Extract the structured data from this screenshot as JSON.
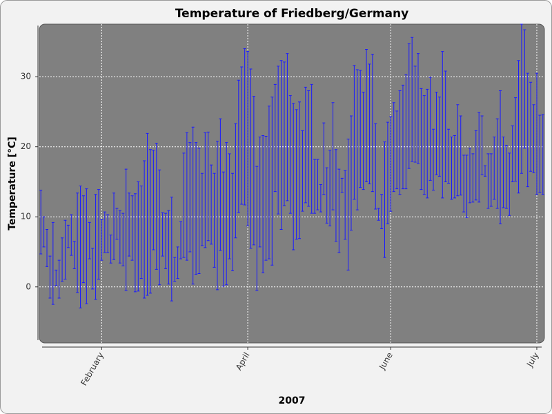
{
  "chart_data": {
    "type": "range",
    "title": "Temperature of Friedberg/Germany",
    "x_label": "2007",
    "y_label": "Temperature [°C]",
    "color": "#1a1aff",
    "ylim": [
      -8,
      37.5
    ],
    "yticks": [
      0,
      10,
      20,
      30
    ],
    "grid": true,
    "categories": [
      null,
      null,
      null,
      null,
      null,
      null,
      null,
      null,
      null,
      null,
      null,
      null,
      null,
      null,
      null,
      null,
      null,
      null,
      null,
      null,
      "February",
      null,
      null,
      null,
      null,
      null,
      null,
      null,
      null,
      null,
      null,
      null,
      null,
      null,
      null,
      null,
      null,
      null,
      null,
      null,
      null,
      null,
      null,
      null,
      null,
      null,
      null,
      null,
      null,
      null,
      null,
      null,
      null,
      null,
      null,
      null,
      null,
      null,
      null,
      null,
      null,
      null,
      null,
      null,
      null,
      null,
      null,
      null,
      "April",
      null,
      null,
      null,
      null,
      null,
      null,
      null,
      null,
      null,
      null,
      null,
      null,
      null,
      null,
      null,
      null,
      null,
      null,
      null,
      null,
      null,
      null,
      null,
      null,
      null,
      null,
      null,
      null,
      null,
      null,
      null,
      null,
      null,
      null,
      null,
      null,
      null,
      null,
      null,
      null,
      null,
      null,
      null,
      null,
      null,
      null,
      "June",
      null,
      null,
      null,
      null,
      null,
      null,
      null,
      null,
      null,
      null,
      null,
      null,
      null,
      null,
      null,
      null,
      null,
      null,
      null,
      null,
      null,
      null,
      null,
      null,
      null,
      null,
      null,
      null,
      null,
      null,
      null,
      null,
      null,
      null,
      null,
      null,
      null,
      null,
      null,
      null,
      null,
      null,
      null,
      null,
      null,
      null,
      null,
      "July",
      null,
      null
    ],
    "high": [
      13.8,
      10.0,
      8.2,
      4.4,
      9.2,
      2.4,
      3.8,
      7.0,
      9.5,
      8.8,
      10.3,
      6.5,
      13.4,
      14.4,
      13.0,
      14.0,
      9.2,
      5.5,
      13.2,
      13.9,
      9.6,
      10.7,
      10.3,
      7.4,
      13.4,
      11.2,
      10.9,
      10.5,
      16.8,
      13.4,
      13.0,
      13.3,
      15.0,
      14.4,
      18.0,
      21.9,
      19.6,
      19.5,
      20.5,
      16.7,
      10.6,
      10.5,
      10.9,
      12.8,
      4.2,
      5.7,
      9.3,
      19.1,
      22.0,
      20.6,
      22.8,
      20.6,
      19.8,
      16.2,
      22.0,
      22.1,
      17.4,
      16.2,
      20.8,
      24.0,
      16.4,
      20.6,
      19.0,
      16.2,
      23.3,
      29.5,
      31.4,
      34.0,
      33.6,
      31.1,
      27.2,
      17.2,
      21.4,
      21.6,
      21.5,
      25.8,
      27.1,
      28.9,
      31.5,
      32.3,
      32.1,
      33.3,
      27.3,
      26.2,
      25.3,
      26.4,
      22.3,
      28.5,
      28.0,
      28.9,
      18.2,
      18.2,
      14.6,
      23.4,
      17.0,
      19.5,
      26.3,
      19.6,
      16.8,
      15.5,
      16.6,
      21.1,
      24.4,
      31.6,
      31.0,
      30.9,
      27.8,
      33.9,
      31.8,
      33.2,
      23.3,
      11.2,
      13.2,
      20.7,
      23.5,
      24.3,
      26.3,
      25.1,
      28.0,
      28.8,
      30.3,
      34.7,
      35.6,
      31.5,
      33.3,
      28.3,
      27.3,
      28.2,
      29.9,
      22.5,
      27.8,
      27.1,
      33.6,
      30.8,
      22.5,
      21.4,
      21.6,
      26.0,
      24.4,
      18.8,
      18.8,
      19.8,
      19.0,
      22.3,
      24.9,
      24.4,
      17.3,
      19.0,
      19.0,
      21.4,
      24.0,
      28.0,
      21.4,
      20.2,
      19.1,
      23.0,
      27.0,
      32.3,
      37.5,
      36.7,
      30.5,
      29.2,
      26.0,
      30.5,
      24.5,
      24.6
    ],
    "low": [
      4.7,
      5.7,
      2.9,
      -1.6,
      -2.5,
      0.2,
      -1.6,
      0.8,
      1.1,
      5.6,
      4.5,
      2.6,
      -0.8,
      -3.0,
      0.6,
      -2.4,
      4.0,
      -0.3,
      -1.8,
      1.1,
      3.8,
      4.9,
      4.9,
      3.4,
      3.9,
      6.8,
      3.4,
      3.0,
      -0.5,
      4.4,
      3.8,
      -0.7,
      -0.6,
      1.2,
      -1.6,
      -1.2,
      -0.9,
      5.3,
      2.5,
      0.3,
      4.4,
      2.6,
      0.4,
      -2.0,
      0.8,
      1.2,
      4.0,
      4.2,
      3.8,
      5.0,
      0.4,
      1.8,
      1.9,
      5.9,
      5.6,
      6.6,
      6.1,
      2.8,
      -0.4,
      5.2,
      0.1,
      0.3,
      4.0,
      2.3,
      7.0,
      10.6,
      11.8,
      11.7,
      8.7,
      5.5,
      6.0,
      -0.5,
      5.7,
      2.0,
      3.8,
      4.0,
      3.1,
      13.6,
      10.4,
      8.2,
      11.6,
      12.3,
      10.5,
      5.3,
      6.8,
      6.9,
      10.8,
      12.0,
      11.5,
      10.5,
      10.5,
      11.0,
      10.7,
      13.2,
      9.1,
      8.7,
      11.0,
      6.5,
      4.9,
      13.5,
      6.8,
      2.4,
      8.1,
      12.5,
      11.0,
      14.2,
      13.9,
      15.0,
      14.7,
      13.6,
      11.1,
      9.5,
      8.3,
      4.2,
      9.0,
      10.8,
      13.6,
      14.0,
      13.2,
      14.0,
      14.0,
      16.9,
      17.9,
      17.8,
      17.6,
      13.9,
      13.2,
      12.7,
      15.2,
      13.8,
      16.0,
      15.8,
      12.7,
      15.0,
      14.8,
      12.5,
      12.7,
      13.0,
      13.1,
      10.7,
      9.9,
      12.0,
      12.1,
      12.4,
      12.1,
      16.0,
      15.8,
      11.2,
      11.5,
      12.5,
      11.2,
      9.0,
      11.3,
      11.2,
      10.2,
      15.0,
      15.1,
      13.4,
      16.2,
      19.8,
      14.3,
      16.5,
      16.3,
      13.2,
      13.5,
      13.2
    ]
  }
}
